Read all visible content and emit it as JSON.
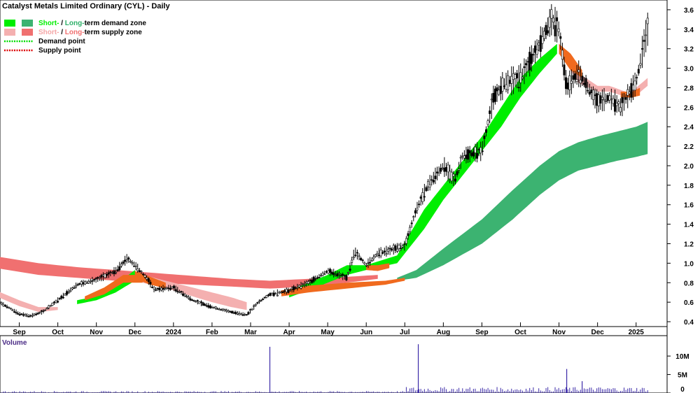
{
  "chart_data": {
    "type": "candlestick",
    "title": "Catalyst Metals Limited Ordinary (CYL) - Daily",
    "legend": {
      "placement": "top-left",
      "items": [
        {
          "parts": [
            {
              "text": "Short-",
              "color": "#00ee00"
            },
            {
              "text": " / ",
              "color": "#000000"
            },
            {
              "text": "Long-",
              "color": "#2fb06a"
            },
            {
              "text": "term demand zone",
              "color": "#000000"
            }
          ],
          "swatches": [
            "#00ee00",
            "#3cb371"
          ]
        },
        {
          "parts": [
            {
              "text": "Short-",
              "color": "#f4a6a6"
            },
            {
              "text": " / ",
              "color": "#000000"
            },
            {
              "text": "Long-",
              "color": "#f07070"
            },
            {
              "text": "term supply zone",
              "color": "#000000"
            }
          ],
          "swatches": [
            "#f4b0b0",
            "#f07070"
          ]
        },
        {
          "parts": [
            {
              "text": "Demand point",
              "color": "#000000"
            }
          ],
          "dotted": "#00dd00"
        },
        {
          "parts": [
            {
              "text": "Supply point",
              "color": "#000000"
            }
          ],
          "dotted": "#dd0000"
        }
      ]
    },
    "x_ticks": [
      "Sep",
      "Oct",
      "Nov",
      "Dec",
      "2024",
      "Feb",
      "Mar",
      "Apr",
      "May",
      "Jun",
      "Jul",
      "Aug",
      "Sep",
      "Oct",
      "Nov",
      "Dec",
      "2025"
    ],
    "x_tick_positions": [
      0.0,
      1.0,
      2.0,
      3.0,
      4.0,
      5.0,
      6.0,
      7.0,
      8.0,
      9.0,
      10.0,
      11.0,
      12.0,
      13.0,
      14.0,
      15.0,
      16.0
    ],
    "x_range": [
      -0.5,
      16.35
    ],
    "price_axis": {
      "ticks": [
        0.4,
        0.6,
        0.8,
        1.0,
        1.2,
        1.4,
        1.6,
        1.8,
        2.0,
        2.2,
        2.4,
        2.6,
        2.8,
        3.0,
        3.2,
        3.4,
        3.6
      ],
      "ylim": [
        0.35,
        3.7
      ],
      "position": "right"
    },
    "volume_panel": {
      "label": "Volume",
      "ticks": [
        0,
        5000000,
        10000000
      ],
      "tick_labels": [
        "0",
        "5M",
        "10M"
      ],
      "ylim": [
        0,
        14000000
      ]
    },
    "colors": {
      "long_demand": "#3cb371",
      "short_demand": "#00ee00",
      "long_supply": "#f07070",
      "short_supply": "#f4b0b0",
      "short_supply_dark": "#f06a1e",
      "volume": "#3b2aa8",
      "candle": "#000000"
    },
    "price_key_points": {
      "x": [
        -0.6,
        -0.3,
        0.0,
        0.3,
        0.6,
        1.0,
        1.5,
        2.0,
        2.5,
        2.8,
        3.0,
        3.3,
        3.5,
        4.0,
        4.5,
        5.0,
        5.5,
        5.9,
        6.2,
        6.5,
        7.0,
        7.5,
        8.0,
        8.5,
        8.7,
        9.0,
        9.3,
        9.5,
        10.0,
        10.3,
        10.6,
        11.0,
        11.3,
        11.5,
        12.0,
        12.3,
        12.6,
        13.0,
        13.5,
        13.8,
        14.0,
        14.2,
        14.5,
        15.0,
        15.3,
        15.6,
        16.0,
        16.2,
        16.3
      ],
      "y": [
        0.62,
        0.55,
        0.48,
        0.46,
        0.5,
        0.62,
        0.78,
        0.83,
        0.92,
        1.05,
        0.98,
        0.85,
        0.73,
        0.75,
        0.62,
        0.55,
        0.5,
        0.47,
        0.6,
        0.68,
        0.72,
        0.8,
        0.92,
        0.85,
        1.12,
        0.98,
        1.1,
        1.12,
        1.18,
        1.55,
        1.8,
        2.0,
        1.85,
        2.1,
        2.15,
        2.7,
        2.85,
        2.9,
        3.25,
        3.5,
        3.4,
        2.8,
        2.95,
        2.65,
        2.7,
        2.6,
        2.85,
        3.25,
        3.4
      ]
    },
    "volume_key_points": {
      "x": [
        6.5,
        10.35,
        14.2,
        14.6
      ],
      "y": [
        12500000,
        13200000,
        6500000,
        3200000
      ]
    },
    "long_demand_zone": {
      "x": [
        9.8,
        10.3,
        11.0,
        12.0,
        12.8,
        13.5,
        14.0,
        14.5,
        15.0,
        15.5,
        16.0,
        16.3
      ],
      "upper": [
        0.85,
        0.93,
        1.15,
        1.45,
        1.75,
        2.0,
        2.15,
        2.24,
        2.3,
        2.35,
        2.4,
        2.45
      ],
      "lower": [
        0.82,
        0.85,
        0.98,
        1.2,
        1.45,
        1.7,
        1.85,
        1.95,
        2.0,
        2.05,
        2.09,
        2.12
      ]
    },
    "long_supply_zone": {
      "x": [
        -0.6,
        0.5,
        1.5,
        2.5,
        3.5,
        4.5,
        5.5,
        6.5,
        7.5,
        8.5,
        9.3
      ],
      "upper": [
        1.07,
        1.0,
        0.96,
        0.93,
        0.9,
        0.87,
        0.84,
        0.82,
        0.84,
        0.86,
        0.88
      ],
      "lower": [
        0.95,
        0.88,
        0.85,
        0.82,
        0.8,
        0.78,
        0.76,
        0.74,
        0.76,
        0.8,
        0.84
      ]
    },
    "short_demand_zone": {
      "x": [
        1.5,
        2.0,
        2.5,
        3.0,
        7.0,
        7.5,
        8.0,
        8.5,
        9.0,
        9.8,
        10.5,
        11.0,
        11.5,
        12.0,
        12.5,
        13.0,
        13.5,
        13.95
      ],
      "upper": [
        0.62,
        0.66,
        0.78,
        0.93,
        0.72,
        0.8,
        0.88,
        0.98,
        0.98,
        1.08,
        1.55,
        1.8,
        2.05,
        2.3,
        2.6,
        2.9,
        3.1,
        3.25
      ],
      "lower": [
        0.58,
        0.62,
        0.7,
        0.82,
        0.65,
        0.72,
        0.8,
        0.88,
        0.93,
        1.0,
        1.35,
        1.65,
        1.9,
        2.15,
        2.4,
        2.7,
        2.95,
        3.15
      ]
    },
    "short_supply_zone": {
      "x": [
        -0.6,
        0.0,
        0.5,
        1.0,
        3.2,
        4.0,
        4.5,
        5.0,
        5.5,
        5.9,
        14.1,
        14.5,
        15.0,
        15.3,
        15.8,
        16.0,
        16.3
      ],
      "upper": [
        0.72,
        0.62,
        0.55,
        0.55,
        0.88,
        0.8,
        0.75,
        0.7,
        0.65,
        0.6,
        3.2,
        2.95,
        2.82,
        2.82,
        2.75,
        2.8,
        2.9
      ],
      "lower": [
        0.66,
        0.56,
        0.5,
        0.52,
        0.8,
        0.72,
        0.66,
        0.6,
        0.55,
        0.52,
        3.1,
        2.85,
        2.76,
        2.76,
        2.7,
        2.72,
        2.82
      ]
    }
  }
}
